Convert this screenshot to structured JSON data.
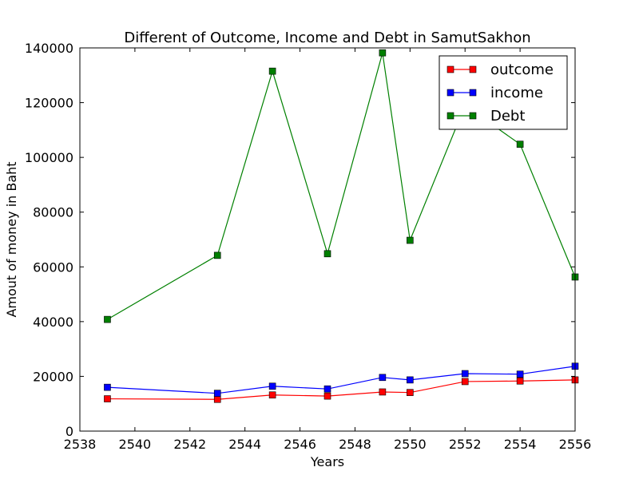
{
  "chart_data": {
    "type": "line",
    "title": "Different of Outcome, Income and Debt in SamutSakhon",
    "xlabel": "Years",
    "ylabel": "Amout of money in Baht",
    "xlim": [
      2538,
      2556
    ],
    "ylim": [
      0,
      140000
    ],
    "xticks": [
      2538,
      2540,
      2542,
      2544,
      2546,
      2548,
      2550,
      2552,
      2554,
      2556
    ],
    "yticks": [
      0,
      20000,
      40000,
      60000,
      80000,
      100000,
      120000,
      140000
    ],
    "x": [
      2539,
      2543,
      2545,
      2547,
      2549,
      2550,
      2552,
      2554,
      2556
    ],
    "grid": false,
    "legend_position": "top-right",
    "series": [
      {
        "name": "outcome",
        "color": "#ff0000",
        "marker": "square",
        "values": [
          11800,
          11600,
          13200,
          12800,
          14300,
          14100,
          18100,
          18300,
          18700
        ]
      },
      {
        "name": "income",
        "color": "#0000ff",
        "marker": "square",
        "values": [
          16000,
          13800,
          16400,
          15400,
          19600,
          18700,
          21000,
          20800,
          23700
        ]
      },
      {
        "name": "Debt",
        "color": "#008000",
        "marker": "square",
        "values": [
          40800,
          64200,
          131500,
          64800,
          138200,
          69700,
          119000,
          104800,
          56300
        ]
      }
    ]
  }
}
